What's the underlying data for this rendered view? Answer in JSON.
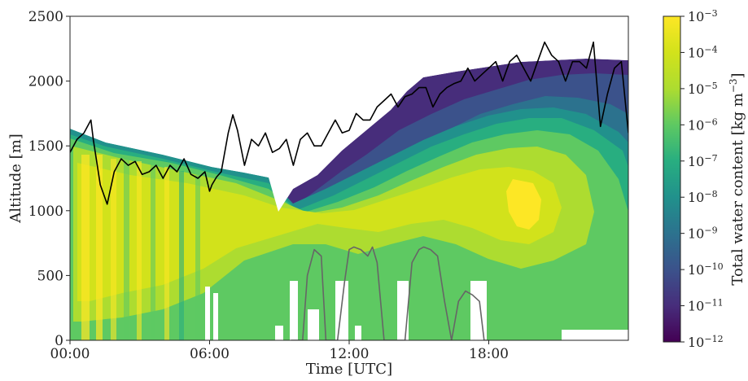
{
  "chart_data": {
    "type": "contour",
    "xlabel": "Time [UTC]",
    "ylabel": "Altitude [m]",
    "xlim": [
      0,
      24
    ],
    "ylim": [
      0,
      2500
    ],
    "x_ticks": [
      {
        "value": 0,
        "label": "00:00"
      },
      {
        "value": 6,
        "label": "06:00"
      },
      {
        "value": 12,
        "label": "12:00"
      },
      {
        "value": 18,
        "label": "18:00"
      }
    ],
    "y_ticks": [
      0,
      500,
      1000,
      1500,
      2000,
      2500
    ],
    "grid": true,
    "colorbar": {
      "label": "Total water content [kg m",
      "label_exponent": "−3",
      "label_suffix": "]",
      "scale": "log",
      "min_exponent": -12,
      "max_exponent": -3,
      "tick_exponents": [
        -12,
        -11,
        -10,
        -9,
        -8,
        -7,
        -6,
        -5,
        -4,
        -3
      ],
      "tick_labels": [
        "−12",
        "−11",
        "−10",
        "−9",
        "−8",
        "−7",
        "−6",
        "−5",
        "−4",
        "−3"
      ],
      "colormap": "viridis"
    },
    "cloud_top_line": {
      "color": "#000000",
      "x": [
        0,
        0.3,
        0.6,
        0.9,
        1.0,
        1.3,
        1.6,
        1.9,
        2.2,
        2.5,
        2.8,
        3.1,
        3.4,
        3.7,
        4.0,
        4.3,
        4.6,
        4.9,
        5.2,
        5.5,
        5.8,
        6.0,
        6.1,
        6.3,
        6.5,
        6.8,
        7.0,
        7.2,
        7.5,
        7.8,
        8.1,
        8.4,
        8.7,
        9.0,
        9.3,
        9.6,
        9.9,
        10.2,
        10.5,
        10.8,
        11.1,
        11.4,
        11.7,
        12.0,
        12.3,
        12.6,
        12.9,
        13.2,
        13.5,
        13.8,
        14.1,
        14.4,
        14.7,
        15.0,
        15.3,
        15.6,
        15.9,
        16.2,
        16.5,
        16.8,
        17.1,
        17.4,
        17.7,
        18.0,
        18.3,
        18.6,
        18.9,
        19.2,
        19.5,
        19.8,
        20.1,
        20.4,
        20.7,
        21.0,
        21.3,
        21.6,
        21.9,
        22.2,
        22.5,
        22.8,
        23.1,
        23.4,
        23.7,
        24.0
      ],
      "y": [
        1450,
        1550,
        1600,
        1700,
        1550,
        1200,
        1050,
        1300,
        1400,
        1350,
        1380,
        1280,
        1300,
        1350,
        1250,
        1350,
        1300,
        1400,
        1280,
        1250,
        1300,
        1150,
        1200,
        1260,
        1300,
        1600,
        1740,
        1620,
        1350,
        1550,
        1500,
        1600,
        1450,
        1480,
        1550,
        1350,
        1550,
        1600,
        1500,
        1500,
        1600,
        1700,
        1600,
        1620,
        1750,
        1700,
        1700,
        1800,
        1850,
        1900,
        1800,
        1880,
        1900,
        1950,
        1950,
        1800,
        1900,
        1950,
        1980,
        2000,
        2100,
        2000,
        2050,
        2100,
        2150,
        2000,
        2150,
        2200,
        2100,
        2000,
        2150,
        2300,
        2200,
        2150,
        2000,
        2150,
        2150,
        2100,
        2300,
        1650,
        1900,
        2100,
        2150,
        1600
      ]
    },
    "precip_line": {
      "color": "#666666",
      "x": [
        9.5,
        10.0,
        10.2,
        10.5,
        10.8,
        11.0,
        11.5,
        11.8,
        12.0,
        12.2,
        12.5,
        12.8,
        13.0,
        13.2,
        13.5,
        13.8,
        14.1,
        14.4,
        14.7,
        15.0,
        15.2,
        15.5,
        15.8,
        16.1,
        16.4,
        16.7,
        17.0,
        17.3,
        17.6,
        17.8,
        18.0
      ],
      "y": [
        0,
        0,
        500,
        700,
        650,
        0,
        0,
        450,
        700,
        720,
        700,
        650,
        720,
        600,
        0,
        0,
        0,
        0,
        600,
        700,
        720,
        700,
        650,
        300,
        0,
        300,
        380,
        350,
        300,
        0,
        0
      ]
    }
  }
}
